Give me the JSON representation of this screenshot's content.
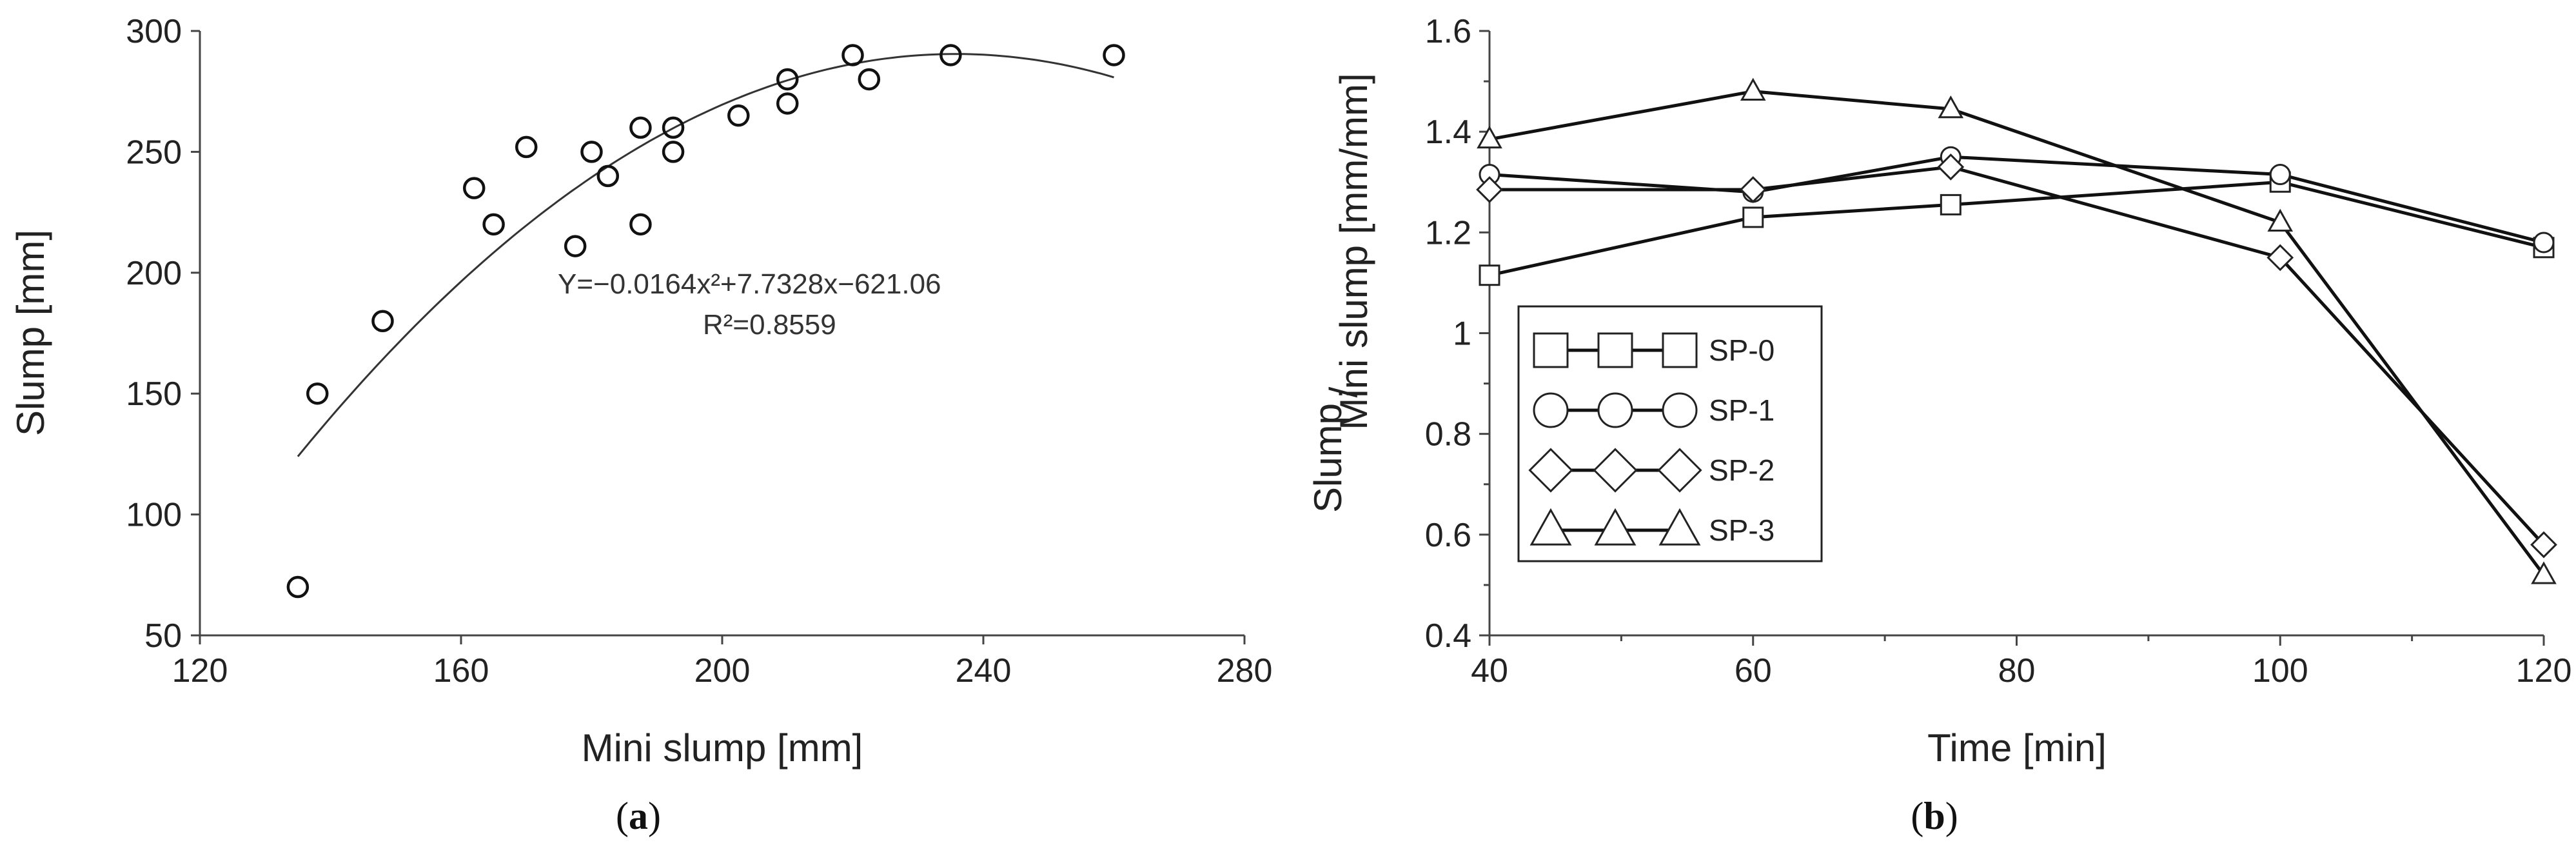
{
  "panels": [
    {
      "label_open": "(",
      "label_letter": "a",
      "label_close": ")"
    },
    {
      "label_open": "(",
      "label_letter": "b",
      "label_close": ")"
    }
  ],
  "chart_data": [
    {
      "type": "scatter",
      "title": "",
      "xlabel": "Mini slump [mm]",
      "ylabel": "Slump [mm]",
      "xlim": [
        120,
        280
      ],
      "ylim": [
        50,
        300
      ],
      "xticks": [
        120,
        160,
        200,
        240,
        280
      ],
      "yticks": [
        50,
        100,
        150,
        200,
        250,
        300
      ],
      "grid": false,
      "points": [
        {
          "x": 135,
          "y": 70
        },
        {
          "x": 138,
          "y": 150
        },
        {
          "x": 148,
          "y": 180
        },
        {
          "x": 162,
          "y": 235
        },
        {
          "x": 165,
          "y": 220
        },
        {
          "x": 170,
          "y": 252
        },
        {
          "x": 177.5,
          "y": 211
        },
        {
          "x": 180,
          "y": 250
        },
        {
          "x": 182.5,
          "y": 240
        },
        {
          "x": 187.5,
          "y": 260
        },
        {
          "x": 187.5,
          "y": 220
        },
        {
          "x": 192.5,
          "y": 260
        },
        {
          "x": 192.5,
          "y": 250
        },
        {
          "x": 202.5,
          "y": 265
        },
        {
          "x": 210,
          "y": 280
        },
        {
          "x": 210,
          "y": 270
        },
        {
          "x": 220,
          "y": 290
        },
        {
          "x": 222.5,
          "y": 280
        },
        {
          "x": 235,
          "y": 290
        },
        {
          "x": 260,
          "y": 290
        }
      ],
      "fit": {
        "type": "polynomial-2",
        "coefficients": [
          -0.0164,
          7.7328,
          -621.06
        ],
        "x_range": [
          135,
          260
        ],
        "equation_text": "Y=−0.0164x²+7.7328x−621.06",
        "r2_text": "R²=0.8559"
      }
    },
    {
      "type": "line",
      "title": "",
      "xlabel": "Time [min]",
      "ylabel_main": "Slump",
      "ylabel_sep": "/",
      "ylabel_rest": "Mini slump [mm/mm]",
      "xlim": [
        40,
        120
      ],
      "ylim": [
        0.4,
        1.6
      ],
      "xticks": [
        40,
        60,
        80,
        100,
        120
      ],
      "yticks": [
        0.4,
        0.6,
        0.8,
        1,
        1.2,
        1.4,
        1.6
      ],
      "grid": false,
      "legend_position": "center-left",
      "x": [
        40,
        60,
        75,
        100,
        120
      ],
      "series": [
        {
          "name": "SP-0",
          "marker": "square",
          "values": [
            1.115,
            1.23,
            1.255,
            1.3,
            1.17
          ]
        },
        {
          "name": "SP-1",
          "marker": "circle",
          "values": [
            1.315,
            1.28,
            1.35,
            1.315,
            1.18
          ]
        },
        {
          "name": "SP-2",
          "marker": "diamond",
          "values": [
            1.285,
            1.285,
            1.33,
            1.15,
            0.58
          ]
        },
        {
          "name": "SP-3",
          "marker": "triangle",
          "values": [
            1.385,
            1.48,
            1.445,
            1.22,
            0.52
          ]
        }
      ]
    }
  ]
}
